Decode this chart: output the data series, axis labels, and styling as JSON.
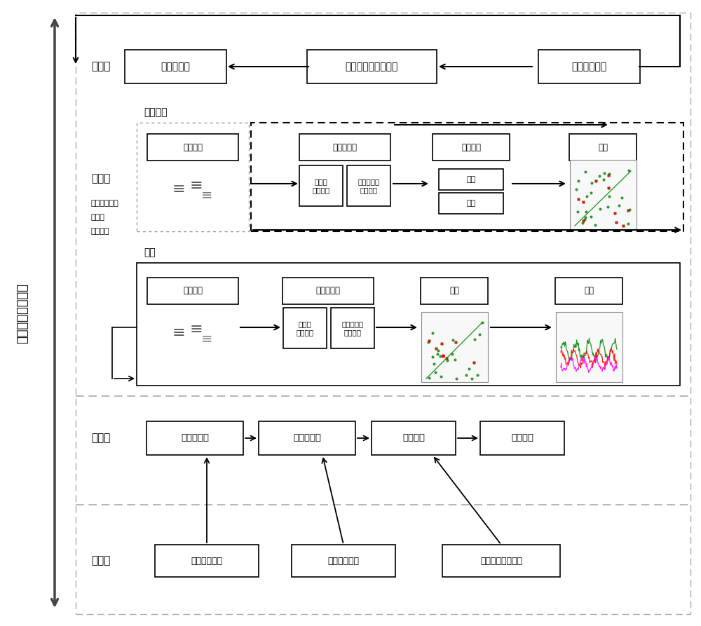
{
  "bg_color": "#ffffff",
  "title_vertical": "数字孪生系统架构",
  "layer_app": "应用层",
  "layer_algo": "算法层",
  "layer_algo_sub": "人体姿态与行\n为分析\n人脸识别",
  "layer_platform": "平台层",
  "layer_driver": "驱动层",
  "app_boxes": [
    "预警与报警",
    "人物与场景数字孪生",
    "预警阈值设定"
  ],
  "train_label": "模型训练",
  "predict_label": "预测",
  "train_boxes_top": [
    "数据导入",
    "数据预处理",
    "监督学习",
    "模型"
  ],
  "train_preprocess": [
    "过滤器",
    "概要统计",
    "主成分分析",
    "集群分析"
  ],
  "train_supervised": [
    "分类",
    "回归"
  ],
  "predict_boxes_top": [
    "实时数据",
    "数据预处理",
    "模型",
    "预测"
  ],
  "predict_preprocess": [
    "过滤器",
    "概要统计",
    "主成分分析",
    "集群分析"
  ],
  "platform_boxes": [
    "传感器融合",
    "映射与定位",
    "场景重构",
    "任务定义"
  ],
  "driver_boxes": [
    "视频数据接口",
    "场景数据接口",
    "人体健康数据接口"
  ]
}
